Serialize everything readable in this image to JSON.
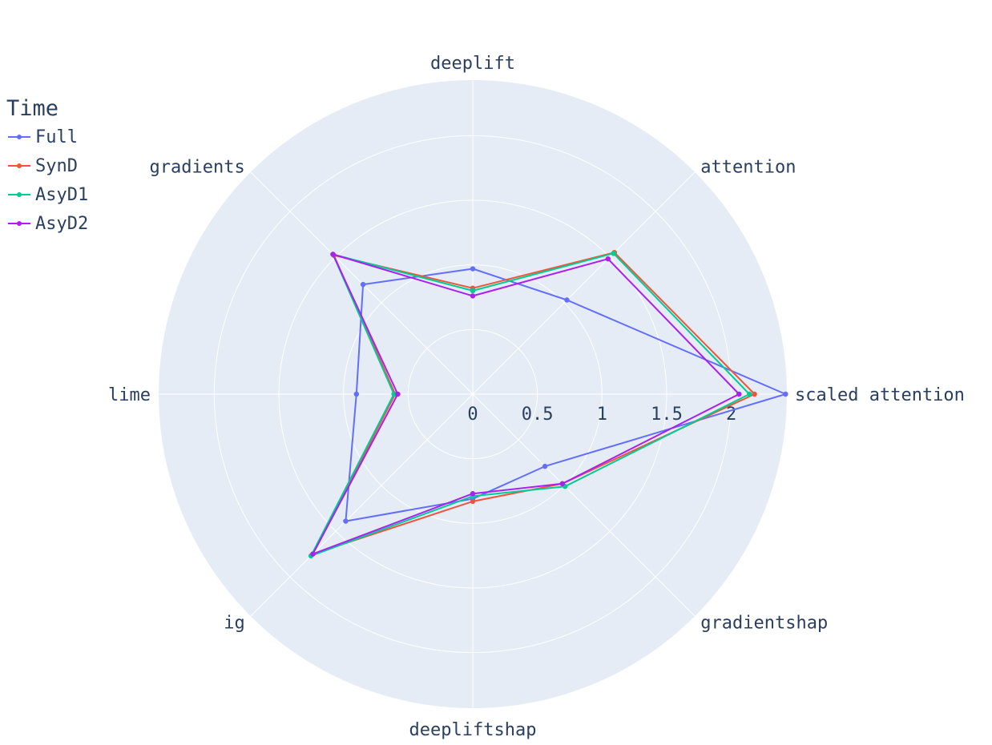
{
  "chart_data": {
    "type": "radar",
    "categories": [
      "scaled attention",
      "attention",
      "deeplift",
      "gradients",
      "lime",
      "ig",
      "deepliftshap",
      "gradientshap"
    ],
    "radial_ticks": [
      "0",
      "0.5",
      "1",
      "1.5",
      "2"
    ],
    "radial_range": [
      0,
      2.43
    ],
    "legend_title": "Time",
    "series": [
      {
        "name": "Full",
        "color": "#636efa",
        "values": [
          2.42,
          1.03,
          0.97,
          1.2,
          0.9,
          1.39,
          0.81,
          0.79
        ]
      },
      {
        "name": "SynD",
        "color": "#ef553b",
        "values": [
          2.18,
          1.55,
          0.82,
          1.52,
          0.6,
          1.75,
          0.83,
          0.98
        ]
      },
      {
        "name": "AsyD1",
        "color": "#00cc96",
        "values": [
          2.14,
          1.54,
          0.8,
          1.53,
          0.61,
          1.77,
          0.79,
          1.01
        ]
      },
      {
        "name": "AsyD2",
        "color": "#ab1fef",
        "values": [
          2.06,
          1.48,
          0.76,
          1.53,
          0.58,
          1.75,
          0.77,
          0.98
        ]
      }
    ]
  }
}
